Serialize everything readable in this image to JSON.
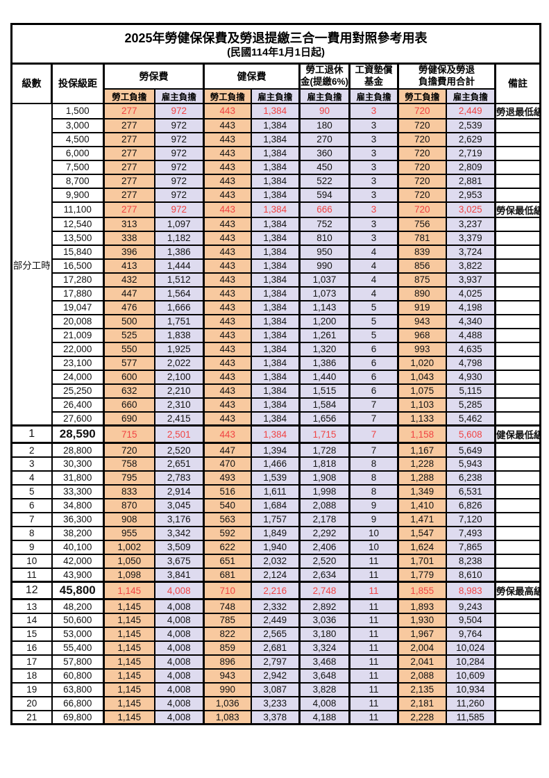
{
  "title": "2025年勞健保保費及勞退提繳三合一費用對照參考用表",
  "subtitle": "(民國114年1月1日起)",
  "colors": {
    "employee_col_bg": "#F8C99F",
    "employer_col_bg": "#DEDBEF",
    "highlight_red": "#F04343",
    "border": "#000000"
  },
  "header": {
    "level": "級數",
    "bracket": "投保級距",
    "labor_insurance": "勞保費",
    "health_insurance": "健保費",
    "pension_line1": "勞工退休",
    "pension_line2": "金(提繳6%)",
    "wage_fund_line1": "工資墊償",
    "wage_fund_line2": "基金",
    "total_line1": "勞健保及勞退",
    "total_line2": "負擔費用合計",
    "remark": "備註",
    "employee": "勞工負擔",
    "employer": "雇主負擔"
  },
  "table": {
    "part_time_label": "部分工時",
    "value_columns": [
      "labor_employee",
      "labor_employer",
      "health_employee",
      "health_employer",
      "pension_employer",
      "fund_employer",
      "total_employee",
      "total_employer"
    ],
    "rows": [
      {
        "level": "",
        "bracket": "1,500",
        "v": [
          "277",
          "972",
          "443",
          "1,384",
          "90",
          "3",
          "720",
          "2,449"
        ],
        "remark": "勞退最低級距",
        "red": true,
        "big": false
      },
      {
        "level": "",
        "bracket": "3,000",
        "v": [
          "277",
          "972",
          "443",
          "1,384",
          "180",
          "3",
          "720",
          "2,539"
        ],
        "remark": "",
        "red": false,
        "big": false
      },
      {
        "level": "",
        "bracket": "4,500",
        "v": [
          "277",
          "972",
          "443",
          "1,384",
          "270",
          "3",
          "720",
          "2,629"
        ],
        "remark": "",
        "red": false,
        "big": false
      },
      {
        "level": "",
        "bracket": "6,000",
        "v": [
          "277",
          "972",
          "443",
          "1,384",
          "360",
          "3",
          "720",
          "2,719"
        ],
        "remark": "",
        "red": false,
        "big": false
      },
      {
        "level": "",
        "bracket": "7,500",
        "v": [
          "277",
          "972",
          "443",
          "1,384",
          "450",
          "3",
          "720",
          "2,809"
        ],
        "remark": "",
        "red": false,
        "big": false
      },
      {
        "level": "",
        "bracket": "8,700",
        "v": [
          "277",
          "972",
          "443",
          "1,384",
          "522",
          "3",
          "720",
          "2,881"
        ],
        "remark": "",
        "red": false,
        "big": false
      },
      {
        "level": "",
        "bracket": "9,900",
        "v": [
          "277",
          "972",
          "443",
          "1,384",
          "594",
          "3",
          "720",
          "2,953"
        ],
        "remark": "",
        "red": false,
        "big": false
      },
      {
        "level": "",
        "bracket": "11,100",
        "v": [
          "277",
          "972",
          "443",
          "1,384",
          "666",
          "3",
          "720",
          "3,025"
        ],
        "remark": "勞保最低級距",
        "red": true,
        "big": false
      },
      {
        "level": "",
        "bracket": "12,540",
        "v": [
          "313",
          "1,097",
          "443",
          "1,384",
          "752",
          "3",
          "756",
          "3,237"
        ],
        "remark": "",
        "red": false,
        "big": false
      },
      {
        "level": "",
        "bracket": "13,500",
        "v": [
          "338",
          "1,182",
          "443",
          "1,384",
          "810",
          "3",
          "781",
          "3,379"
        ],
        "remark": "",
        "red": false,
        "big": false
      },
      {
        "level": "",
        "bracket": "15,840",
        "v": [
          "396",
          "1,386",
          "443",
          "1,384",
          "950",
          "4",
          "839",
          "3,724"
        ],
        "remark": "",
        "red": false,
        "big": false
      },
      {
        "level": "",
        "bracket": "16,500",
        "v": [
          "413",
          "1,444",
          "443",
          "1,384",
          "990",
          "4",
          "856",
          "3,822"
        ],
        "remark": "",
        "red": false,
        "big": false
      },
      {
        "level": "",
        "bracket": "17,280",
        "v": [
          "432",
          "1,512",
          "443",
          "1,384",
          "1,037",
          "4",
          "875",
          "3,937"
        ],
        "remark": "",
        "red": false,
        "big": false
      },
      {
        "level": "",
        "bracket": "17,880",
        "v": [
          "447",
          "1,564",
          "443",
          "1,384",
          "1,073",
          "4",
          "890",
          "4,025"
        ],
        "remark": "",
        "red": false,
        "big": false
      },
      {
        "level": "",
        "bracket": "19,047",
        "v": [
          "476",
          "1,666",
          "443",
          "1,384",
          "1,143",
          "5",
          "919",
          "4,198"
        ],
        "remark": "",
        "red": false,
        "big": false
      },
      {
        "level": "",
        "bracket": "20,008",
        "v": [
          "500",
          "1,751",
          "443",
          "1,384",
          "1,200",
          "5",
          "943",
          "4,340"
        ],
        "remark": "",
        "red": false,
        "big": false
      },
      {
        "level": "",
        "bracket": "21,009",
        "v": [
          "525",
          "1,838",
          "443",
          "1,384",
          "1,261",
          "5",
          "968",
          "4,488"
        ],
        "remark": "",
        "red": false,
        "big": false
      },
      {
        "level": "",
        "bracket": "22,000",
        "v": [
          "550",
          "1,925",
          "443",
          "1,384",
          "1,320",
          "6",
          "993",
          "4,635"
        ],
        "remark": "",
        "red": false,
        "big": false
      },
      {
        "level": "",
        "bracket": "23,100",
        "v": [
          "577",
          "2,022",
          "443",
          "1,384",
          "1,386",
          "6",
          "1,020",
          "4,798"
        ],
        "remark": "",
        "red": false,
        "big": false
      },
      {
        "level": "",
        "bracket": "24,000",
        "v": [
          "600",
          "2,100",
          "443",
          "1,384",
          "1,440",
          "6",
          "1,043",
          "4,930"
        ],
        "remark": "",
        "red": false,
        "big": false
      },
      {
        "level": "",
        "bracket": "25,250",
        "v": [
          "632",
          "2,210",
          "443",
          "1,384",
          "1,515",
          "6",
          "1,075",
          "5,115"
        ],
        "remark": "",
        "red": false,
        "big": false
      },
      {
        "level": "",
        "bracket": "26,400",
        "v": [
          "660",
          "2,310",
          "443",
          "1,384",
          "1,584",
          "7",
          "1,103",
          "5,285"
        ],
        "remark": "",
        "red": false,
        "big": false
      },
      {
        "level": "",
        "bracket": "27,600",
        "v": [
          "690",
          "2,415",
          "443",
          "1,384",
          "1,656",
          "7",
          "1,133",
          "5,462"
        ],
        "remark": "",
        "red": false,
        "big": false
      },
      {
        "level": "1",
        "bracket": "28,590",
        "v": [
          "715",
          "2,501",
          "443",
          "1,384",
          "1,715",
          "7",
          "1,158",
          "5,608"
        ],
        "remark": "健保最低級距",
        "red": true,
        "big": true
      },
      {
        "level": "2",
        "bracket": "28,800",
        "v": [
          "720",
          "2,520",
          "447",
          "1,394",
          "1,728",
          "7",
          "1,167",
          "5,649"
        ],
        "remark": "",
        "red": false,
        "big": false
      },
      {
        "level": "3",
        "bracket": "30,300",
        "v": [
          "758",
          "2,651",
          "470",
          "1,466",
          "1,818",
          "8",
          "1,228",
          "5,943"
        ],
        "remark": "",
        "red": false,
        "big": false
      },
      {
        "level": "4",
        "bracket": "31,800",
        "v": [
          "795",
          "2,783",
          "493",
          "1,539",
          "1,908",
          "8",
          "1,288",
          "6,238"
        ],
        "remark": "",
        "red": false,
        "big": false
      },
      {
        "level": "5",
        "bracket": "33,300",
        "v": [
          "833",
          "2,914",
          "516",
          "1,611",
          "1,998",
          "8",
          "1,349",
          "6,531"
        ],
        "remark": "",
        "red": false,
        "big": false
      },
      {
        "level": "6",
        "bracket": "34,800",
        "v": [
          "870",
          "3,045",
          "540",
          "1,684",
          "2,088",
          "9",
          "1,410",
          "6,826"
        ],
        "remark": "",
        "red": false,
        "big": false
      },
      {
        "level": "7",
        "bracket": "36,300",
        "v": [
          "908",
          "3,176",
          "563",
          "1,757",
          "2,178",
          "9",
          "1,471",
          "7,120"
        ],
        "remark": "",
        "red": false,
        "big": false
      },
      {
        "level": "8",
        "bracket": "38,200",
        "v": [
          "955",
          "3,342",
          "592",
          "1,849",
          "2,292",
          "10",
          "1,547",
          "7,493"
        ],
        "remark": "",
        "red": false,
        "big": false
      },
      {
        "level": "9",
        "bracket": "40,100",
        "v": [
          "1,002",
          "3,509",
          "622",
          "1,940",
          "2,406",
          "10",
          "1,624",
          "7,865"
        ],
        "remark": "",
        "red": false,
        "big": false
      },
      {
        "level": "10",
        "bracket": "42,000",
        "v": [
          "1,050",
          "3,675",
          "651",
          "2,032",
          "2,520",
          "11",
          "1,701",
          "8,238"
        ],
        "remark": "",
        "red": false,
        "big": false
      },
      {
        "level": "11",
        "bracket": "43,900",
        "v": [
          "1,098",
          "3,841",
          "681",
          "2,124",
          "2,634",
          "11",
          "1,779",
          "8,610"
        ],
        "remark": "",
        "red": false,
        "big": false
      },
      {
        "level": "12",
        "bracket": "45,800",
        "v": [
          "1,145",
          "4,008",
          "710",
          "2,216",
          "2,748",
          "11",
          "1,855",
          "8,983"
        ],
        "remark": "勞保最高級距",
        "red": true,
        "big": true
      },
      {
        "level": "13",
        "bracket": "48,200",
        "v": [
          "1,145",
          "4,008",
          "748",
          "2,332",
          "2,892",
          "11",
          "1,893",
          "9,243"
        ],
        "remark": "",
        "red": false,
        "big": false
      },
      {
        "level": "14",
        "bracket": "50,600",
        "v": [
          "1,145",
          "4,008",
          "785",
          "2,449",
          "3,036",
          "11",
          "1,930",
          "9,504"
        ],
        "remark": "",
        "red": false,
        "big": false
      },
      {
        "level": "15",
        "bracket": "53,000",
        "v": [
          "1,145",
          "4,008",
          "822",
          "2,565",
          "3,180",
          "11",
          "1,967",
          "9,764"
        ],
        "remark": "",
        "red": false,
        "big": false
      },
      {
        "level": "16",
        "bracket": "55,400",
        "v": [
          "1,145",
          "4,008",
          "859",
          "2,681",
          "3,324",
          "11",
          "2,004",
          "10,024"
        ],
        "remark": "",
        "red": false,
        "big": false
      },
      {
        "level": "17",
        "bracket": "57,800",
        "v": [
          "1,145",
          "4,008",
          "896",
          "2,797",
          "3,468",
          "11",
          "2,041",
          "10,284"
        ],
        "remark": "",
        "red": false,
        "big": false
      },
      {
        "level": "18",
        "bracket": "60,800",
        "v": [
          "1,145",
          "4,008",
          "943",
          "2,942",
          "3,648",
          "11",
          "2,088",
          "10,609"
        ],
        "remark": "",
        "red": false,
        "big": false
      },
      {
        "level": "19",
        "bracket": "63,800",
        "v": [
          "1,145",
          "4,008",
          "990",
          "3,087",
          "3,828",
          "11",
          "2,135",
          "10,934"
        ],
        "remark": "",
        "red": false,
        "big": false
      },
      {
        "level": "20",
        "bracket": "66,800",
        "v": [
          "1,145",
          "4,008",
          "1,036",
          "3,233",
          "4,008",
          "11",
          "2,181",
          "11,260"
        ],
        "remark": "",
        "red": false,
        "big": false
      },
      {
        "level": "21",
        "bracket": "69,800",
        "v": [
          "1,145",
          "4,008",
          "1,083",
          "3,378",
          "4,188",
          "11",
          "2,228",
          "11,585"
        ],
        "remark": "",
        "red": false,
        "big": false
      }
    ]
  }
}
